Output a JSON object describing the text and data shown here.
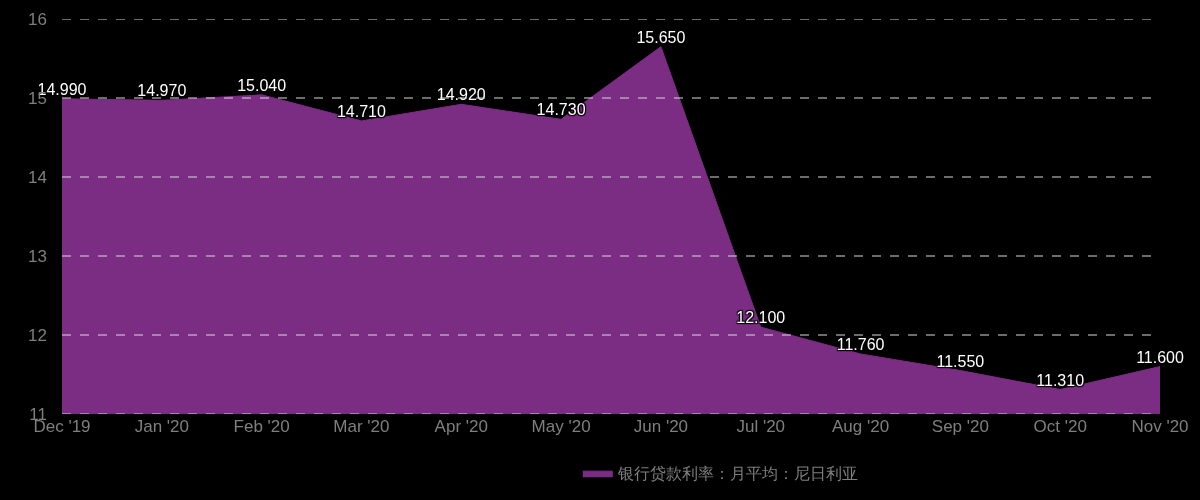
{
  "chart_data": {
    "type": "area",
    "categories": [
      "Dec '19",
      "Jan '20",
      "Feb '20",
      "Mar '20",
      "Apr '20",
      "May '20",
      "Jun '20",
      "Jul '20",
      "Aug '20",
      "Sep '20",
      "Oct '20",
      "Nov '20"
    ],
    "series": [
      {
        "name": "银行贷款利率：月平均：尼日利亚",
        "color": "#7b2d83",
        "values": [
          14.99,
          14.97,
          15.04,
          14.71,
          14.92,
          14.73,
          15.65,
          12.1,
          11.76,
          11.55,
          11.31,
          11.6
        ],
        "value_labels": [
          "14.990",
          "14.970",
          "15.040",
          "14.710",
          "14.920",
          "14.730",
          "15.650",
          "12.100",
          "11.760",
          "11.550",
          "11.310",
          "11.600"
        ]
      }
    ],
    "ylim": [
      11,
      16
    ],
    "yticks": [
      11,
      12,
      13,
      14,
      15,
      16
    ],
    "grid": "y",
    "legend": "bottom"
  }
}
